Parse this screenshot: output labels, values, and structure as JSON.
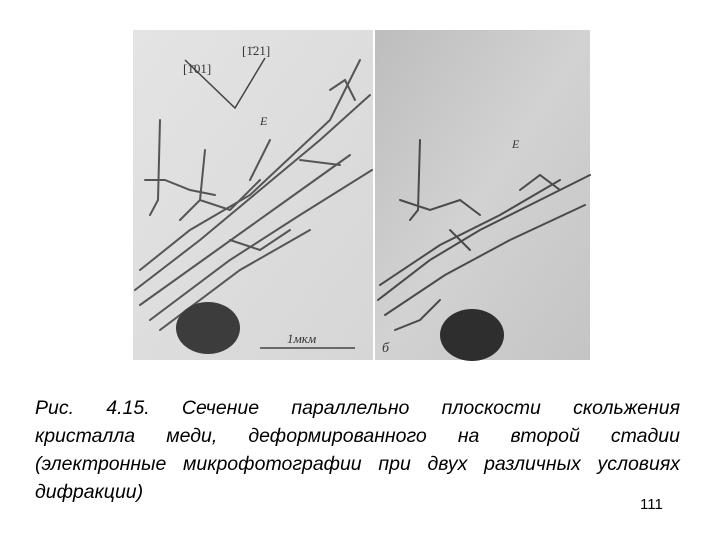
{
  "figure": {
    "left_panel": {
      "direction_a": "[1̄01]",
      "direction_b": "[1̄21]",
      "label_e": "E",
      "scale_bar": "1мкм"
    },
    "right_panel": {
      "label_e": "E",
      "panel_label": "б"
    }
  },
  "caption": {
    "lines": [
      "Рис. 4.15. Сечение параллельно плоскости скольжения",
      "кристалла меди, деформированного на второй стадии",
      "(электронные микрофотографии при двух различных условиях",
      "дифракции)"
    ]
  },
  "page_number": "111"
}
